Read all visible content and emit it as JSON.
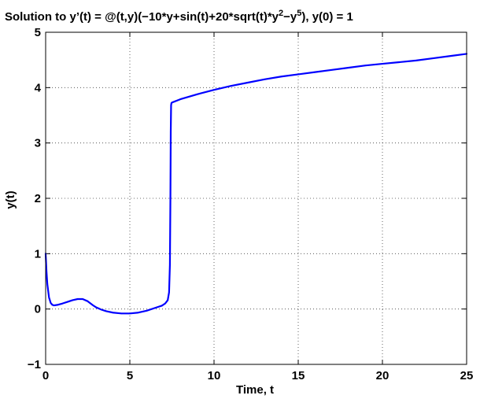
{
  "chart_data": {
    "type": "line",
    "title": "Solution to y’(t) = @(t,y)(−10*y+sin(t)+20*sqrt(t)*y²−y⁵), y(0) = 1",
    "title_parts": {
      "main": "Solution to y’(t) = @(t,y)(−10*y+sin(t)+20*sqrt(t)*y",
      "exp1": "2",
      "mid": "−y",
      "exp2": "5",
      "tail": "), y(0) = 1"
    },
    "xlabel": "Time, t",
    "ylabel": "y(t)",
    "xlim": [
      0,
      25
    ],
    "ylim": [
      -1,
      5
    ],
    "xticks": [
      0,
      5,
      10,
      15,
      20,
      25
    ],
    "yticks": [
      -1,
      0,
      1,
      2,
      3,
      4,
      5
    ],
    "xtick_labels": [
      "0",
      "5",
      "10",
      "15",
      "20",
      "25"
    ],
    "ytick_labels": [
      "−1",
      "0",
      "1",
      "2",
      "3",
      "4",
      "5"
    ],
    "grid": true,
    "legend": "none",
    "series": [
      {
        "color": "#0000ff",
        "x": [
          0,
          0.05,
          0.1,
          0.2,
          0.3,
          0.4,
          0.5,
          0.7,
          1.0,
          1.3,
          1.6,
          1.9,
          2.2,
          2.5,
          2.8,
          3.0,
          3.3,
          3.6,
          4.0,
          4.5,
          5.0,
          5.5,
          6.0,
          6.5,
          6.9,
          7.1,
          7.25,
          7.33,
          7.38,
          7.41,
          7.43,
          7.45,
          7.47,
          7.5,
          8,
          9,
          10,
          11,
          12,
          13,
          14,
          15,
          16,
          17,
          18,
          19,
          20,
          21,
          22,
          23,
          24,
          25
        ],
        "y": [
          1.0,
          0.68,
          0.45,
          0.21,
          0.11,
          0.075,
          0.065,
          0.075,
          0.1,
          0.13,
          0.16,
          0.18,
          0.18,
          0.14,
          0.07,
          0.03,
          -0.01,
          -0.04,
          -0.065,
          -0.08,
          -0.08,
          -0.065,
          -0.03,
          0.02,
          0.06,
          0.1,
          0.16,
          0.3,
          0.8,
          2.0,
          3.2,
          3.68,
          3.72,
          3.73,
          3.79,
          3.88,
          3.96,
          4.03,
          4.09,
          4.15,
          4.2,
          4.24,
          4.28,
          4.32,
          4.36,
          4.4,
          4.43,
          4.46,
          4.49,
          4.53,
          4.57,
          4.61
        ]
      }
    ]
  }
}
